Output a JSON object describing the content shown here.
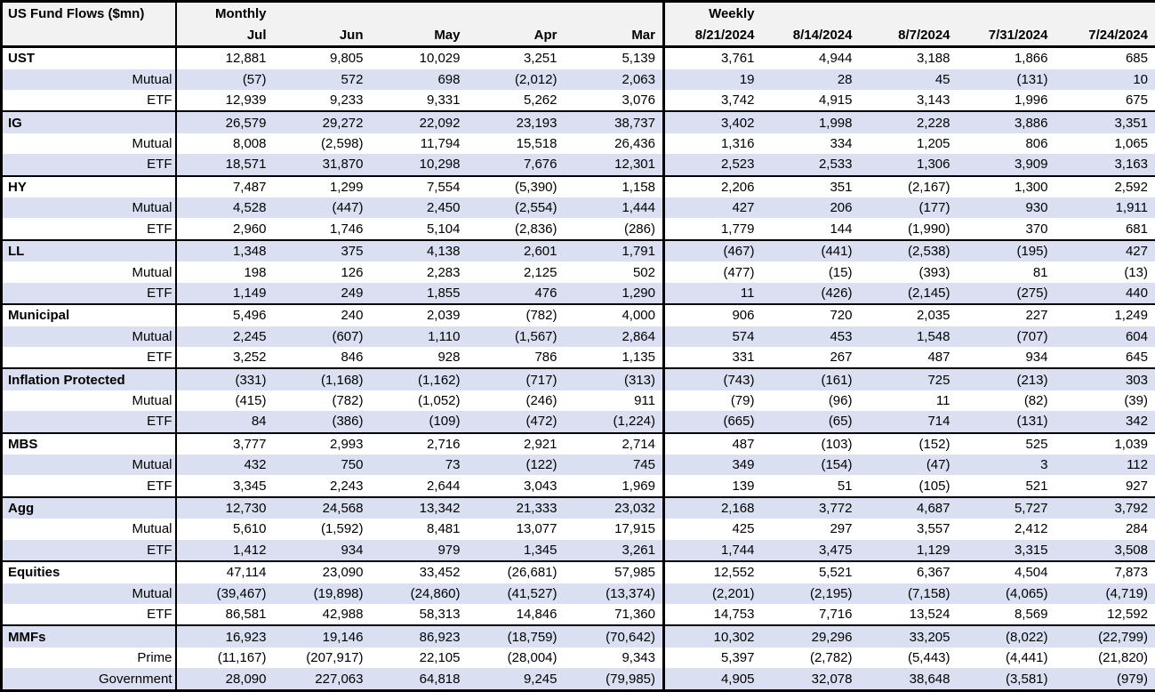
{
  "colors": {
    "shaded_row": "#dae0f1",
    "header_bg": "#f2f2f2",
    "border": "#000000",
    "text": "#000000"
  },
  "chart_data": {
    "type": "table",
    "title": "US Fund Flows ($mn)",
    "column_groups": [
      {
        "label": "Monthly",
        "columns": [
          "Jul",
          "Jun",
          "May",
          "Apr",
          "Mar"
        ]
      },
      {
        "label": "Weekly",
        "columns": [
          "8/21/2024",
          "8/14/2024",
          "8/7/2024",
          "7/31/2024",
          "7/24/2024"
        ]
      }
    ],
    "sections": [
      {
        "name": "UST",
        "rows": [
          {
            "label": "UST",
            "values": [
              "12,881",
              "9,805",
              "10,029",
              "3,251",
              "5,139",
              "3,761",
              "4,944",
              "3,188",
              "1,866",
              "685"
            ]
          },
          {
            "label": "Mutual",
            "values": [
              "(57)",
              "572",
              "698",
              "(2,012)",
              "2,063",
              "19",
              "28",
              "45",
              "(131)",
              "10"
            ]
          },
          {
            "label": "ETF",
            "values": [
              "12,939",
              "9,233",
              "9,331",
              "5,262",
              "3,076",
              "3,742",
              "4,915",
              "3,143",
              "1,996",
              "675"
            ]
          }
        ]
      },
      {
        "name": "IG",
        "rows": [
          {
            "label": "IG",
            "values": [
              "26,579",
              "29,272",
              "22,092",
              "23,193",
              "38,737",
              "3,402",
              "1,998",
              "2,228",
              "3,886",
              "3,351"
            ]
          },
          {
            "label": "Mutual",
            "values": [
              "8,008",
              "(2,598)",
              "11,794",
              "15,518",
              "26,436",
              "1,316",
              "334",
              "1,205",
              "806",
              "1,065"
            ]
          },
          {
            "label": "ETF",
            "values": [
              "18,571",
              "31,870",
              "10,298",
              "7,676",
              "12,301",
              "2,523",
              "2,533",
              "1,306",
              "3,909",
              "3,163"
            ]
          }
        ]
      },
      {
        "name": "HY",
        "rows": [
          {
            "label": "HY",
            "values": [
              "7,487",
              "1,299",
              "7,554",
              "(5,390)",
              "1,158",
              "2,206",
              "351",
              "(2,167)",
              "1,300",
              "2,592"
            ]
          },
          {
            "label": "Mutual",
            "values": [
              "4,528",
              "(447)",
              "2,450",
              "(2,554)",
              "1,444",
              "427",
              "206",
              "(177)",
              "930",
              "1,911"
            ]
          },
          {
            "label": "ETF",
            "values": [
              "2,960",
              "1,746",
              "5,104",
              "(2,836)",
              "(286)",
              "1,779",
              "144",
              "(1,990)",
              "370",
              "681"
            ]
          }
        ]
      },
      {
        "name": "LL",
        "rows": [
          {
            "label": "LL",
            "values": [
              "1,348",
              "375",
              "4,138",
              "2,601",
              "1,791",
              "(467)",
              "(441)",
              "(2,538)",
              "(195)",
              "427"
            ]
          },
          {
            "label": "Mutual",
            "values": [
              "198",
              "126",
              "2,283",
              "2,125",
              "502",
              "(477)",
              "(15)",
              "(393)",
              "81",
              "(13)"
            ]
          },
          {
            "label": "ETF",
            "values": [
              "1,149",
              "249",
              "1,855",
              "476",
              "1,290",
              "11",
              "(426)",
              "(2,145)",
              "(275)",
              "440"
            ]
          }
        ]
      },
      {
        "name": "Municipal",
        "rows": [
          {
            "label": "Municipal",
            "values": [
              "5,496",
              "240",
              "2,039",
              "(782)",
              "4,000",
              "906",
              "720",
              "2,035",
              "227",
              "1,249"
            ]
          },
          {
            "label": "Mutual",
            "values": [
              "2,245",
              "(607)",
              "1,110",
              "(1,567)",
              "2,864",
              "574",
              "453",
              "1,548",
              "(707)",
              "604"
            ]
          },
          {
            "label": "ETF",
            "values": [
              "3,252",
              "846",
              "928",
              "786",
              "1,135",
              "331",
              "267",
              "487",
              "934",
              "645"
            ]
          }
        ]
      },
      {
        "name": "Inflation Protected",
        "rows": [
          {
            "label": "Inflation Protected",
            "values": [
              "(331)",
              "(1,168)",
              "(1,162)",
              "(717)",
              "(313)",
              "(743)",
              "(161)",
              "725",
              "(213)",
              "303"
            ]
          },
          {
            "label": "Mutual",
            "values": [
              "(415)",
              "(782)",
              "(1,052)",
              "(246)",
              "911",
              "(79)",
              "(96)",
              "11",
              "(82)",
              "(39)"
            ]
          },
          {
            "label": "ETF",
            "values": [
              "84",
              "(386)",
              "(109)",
              "(472)",
              "(1,224)",
              "(665)",
              "(65)",
              "714",
              "(131)",
              "342"
            ]
          }
        ]
      },
      {
        "name": "MBS",
        "rows": [
          {
            "label": "MBS",
            "values": [
              "3,777",
              "2,993",
              "2,716",
              "2,921",
              "2,714",
              "487",
              "(103)",
              "(152)",
              "525",
              "1,039"
            ]
          },
          {
            "label": "Mutual",
            "values": [
              "432",
              "750",
              "73",
              "(122)",
              "745",
              "349",
              "(154)",
              "(47)",
              "3",
              "112"
            ]
          },
          {
            "label": "ETF",
            "values": [
              "3,345",
              "2,243",
              "2,644",
              "3,043",
              "1,969",
              "139",
              "51",
              "(105)",
              "521",
              "927"
            ]
          }
        ]
      },
      {
        "name": "Agg",
        "rows": [
          {
            "label": "Agg",
            "values": [
              "12,730",
              "24,568",
              "13,342",
              "21,333",
              "23,032",
              "2,168",
              "3,772",
              "4,687",
              "5,727",
              "3,792"
            ]
          },
          {
            "label": "Mutual",
            "values": [
              "5,610",
              "(1,592)",
              "8,481",
              "13,077",
              "17,915",
              "425",
              "297",
              "3,557",
              "2,412",
              "284"
            ]
          },
          {
            "label": "ETF",
            "values": [
              "1,412",
              "934",
              "979",
              "1,345",
              "3,261",
              "1,744",
              "3,475",
              "1,129",
              "3,315",
              "3,508"
            ]
          }
        ]
      },
      {
        "name": "Equities",
        "rows": [
          {
            "label": "Equities",
            "values": [
              "47,114",
              "23,090",
              "33,452",
              "(26,681)",
              "57,985",
              "12,552",
              "5,521",
              "6,367",
              "4,504",
              "7,873"
            ]
          },
          {
            "label": "Mutual",
            "values": [
              "(39,467)",
              "(19,898)",
              "(24,860)",
              "(41,527)",
              "(13,374)",
              "(2,201)",
              "(2,195)",
              "(7,158)",
              "(4,065)",
              "(4,719)"
            ]
          },
          {
            "label": "ETF",
            "values": [
              "86,581",
              "42,988",
              "58,313",
              "14,846",
              "71,360",
              "14,753",
              "7,716",
              "13,524",
              "8,569",
              "12,592"
            ]
          }
        ]
      },
      {
        "name": "MMFs",
        "rows": [
          {
            "label": "MMFs",
            "values": [
              "16,923",
              "19,146",
              "86,923",
              "(18,759)",
              "(70,642)",
              "10,302",
              "29,296",
              "33,205",
              "(8,022)",
              "(22,799)"
            ]
          },
          {
            "label": "Prime",
            "values": [
              "(11,167)",
              "(207,917)",
              "22,105",
              "(28,004)",
              "9,343",
              "5,397",
              "(2,782)",
              "(5,443)",
              "(4,441)",
              "(21,820)"
            ]
          },
          {
            "label": "Government",
            "values": [
              "28,090",
              "227,063",
              "64,818",
              "9,245",
              "(79,985)",
              "4,905",
              "32,078",
              "38,648",
              "(3,581)",
              "(979)"
            ]
          }
        ]
      }
    ]
  }
}
